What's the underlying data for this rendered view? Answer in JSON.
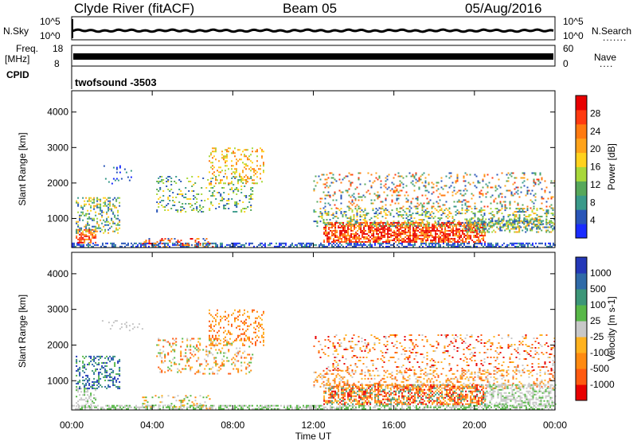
{
  "header": {
    "station": "Clyde River (fitACF)",
    "beam": "Beam 05",
    "date": "05/Aug/2016"
  },
  "top_panels": {
    "nsky_label": "N.Sky",
    "nsearch_label": "N.Search",
    "nsearch_dots": ".......",
    "noise_ticks": [
      "10^5",
      "10^0"
    ],
    "freq_label_line1": "Freq.",
    "freq_label_line2": "[MHz]",
    "freq_ticks": [
      "18",
      "8"
    ],
    "nave_label": "Nave",
    "nave_dots": "....",
    "nave_ticks": [
      "60",
      "0"
    ],
    "cpid_label": "CPID",
    "cpid_value": "twofsound -3503"
  },
  "chart_data": [
    {
      "type": "heatmap",
      "name": "power",
      "ylabel": "Slant Range [km]",
      "yticks": [
        1000,
        2000,
        3000,
        4000
      ],
      "ylim": [
        180,
        4600
      ],
      "xlim_hours": [
        0,
        24
      ],
      "colorbar": {
        "label": "Power [dB]",
        "ticks": [
          "4",
          "8",
          "12",
          "16",
          "20",
          "24",
          "28"
        ],
        "colors": [
          "#1a2cff",
          "#2a56b8",
          "#3a9a8a",
          "#57a85a",
          "#a8d83a",
          "#ffd21e",
          "#ffa31a",
          "#ff7a10",
          "#ff3a10",
          "#e80000"
        ]
      }
    },
    {
      "type": "heatmap",
      "name": "velocity",
      "ylabel": "Slant Range [km]",
      "yticks": [
        1000,
        2000,
        3000,
        4000
      ],
      "ylim": [
        180,
        4600
      ],
      "xlim_hours": [
        0,
        24
      ],
      "xlabel": "Time UT",
      "xticks": [
        "00:00",
        "04:00",
        "08:00",
        "12:00",
        "16:00",
        "20:00",
        "00:00"
      ],
      "colorbar": {
        "label": "Velocity [m s-1]",
        "ticks": [
          "1000",
          "500",
          "100",
          "25",
          "-25",
          "-100",
          "-500",
          "-1000"
        ],
        "colors": [
          "#2438b8",
          "#2f6aa8",
          "#3c9678",
          "#58b848",
          "#c8c8c8",
          "#ffb21e",
          "#ff8a10",
          "#ff5a10",
          "#e80000"
        ]
      }
    }
  ]
}
